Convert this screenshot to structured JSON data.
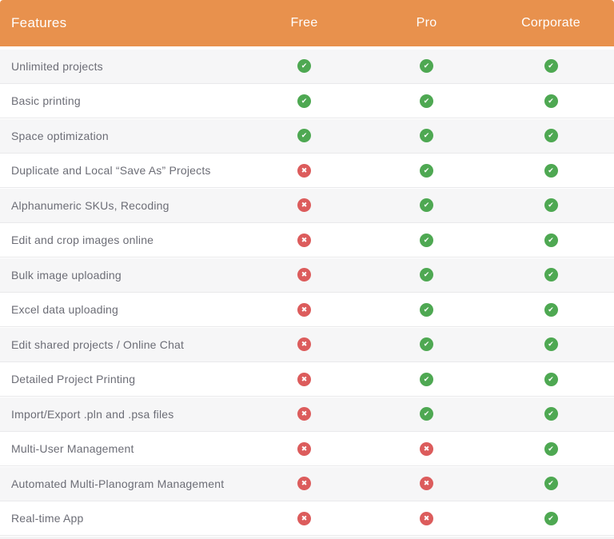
{
  "table": {
    "feature_column_header": "Features",
    "plan_headers": [
      "Free",
      "Pro",
      "Corporate"
    ],
    "rows": [
      {
        "feature": "Unlimited projects",
        "availability": [
          true,
          true,
          true
        ]
      },
      {
        "feature": "Basic printing",
        "availability": [
          true,
          true,
          true
        ]
      },
      {
        "feature": "Space optimization",
        "availability": [
          true,
          true,
          true
        ]
      },
      {
        "feature": "Duplicate and Local “Save As” Projects",
        "availability": [
          false,
          true,
          true
        ]
      },
      {
        "feature": "Alphanumeric SKUs, Recoding",
        "availability": [
          false,
          true,
          true
        ]
      },
      {
        "feature": "Edit and crop images online",
        "availability": [
          false,
          true,
          true
        ]
      },
      {
        "feature": "Bulk image uploading",
        "availability": [
          false,
          true,
          true
        ]
      },
      {
        "feature": "Excel data uploading",
        "availability": [
          false,
          true,
          true
        ]
      },
      {
        "feature": "Edit shared projects / Online Chat",
        "availability": [
          false,
          true,
          true
        ]
      },
      {
        "feature": "Detailed Project Printing",
        "availability": [
          false,
          true,
          true
        ]
      },
      {
        "feature": "Import/Export .pln and .psa files",
        "availability": [
          false,
          true,
          true
        ]
      },
      {
        "feature": "Multi-User Management",
        "availability": [
          false,
          false,
          true
        ]
      },
      {
        "feature": "Automated Multi-Planogram Management",
        "availability": [
          false,
          false,
          true
        ]
      },
      {
        "feature": "Real-time App",
        "availability": [
          false,
          false,
          true
        ]
      }
    ]
  },
  "icons": {
    "available": "check-icon",
    "unavailable": "cross-icon",
    "check_glyph": "✔",
    "cross_glyph": "✖"
  },
  "colors": {
    "header_bg": "#e8914d",
    "header_text": "#ffffff",
    "row_bg": "#ffffff",
    "row_alt_bg": "#f6f6f7",
    "text": "#6c6d76",
    "check": "#4ea852",
    "cross": "#dc5c5c"
  }
}
